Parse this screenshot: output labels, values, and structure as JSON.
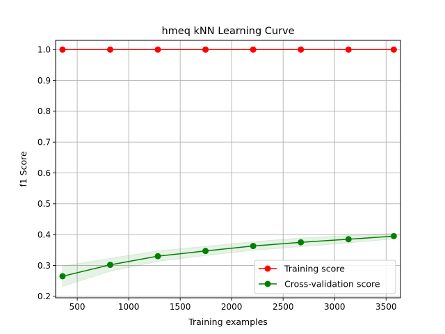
{
  "chart_data": {
    "type": "line",
    "title": "hmeq kNN Learning Curve",
    "xlabel": "Training examples",
    "ylabel": "f1 Score",
    "xlim": [
      290,
      3640
    ],
    "ylim": [
      0.195,
      1.03
    ],
    "xticks": [
      500,
      1000,
      1500,
      2000,
      2500,
      3000,
      3500
    ],
    "xtick_labels": [
      "500",
      "1000",
      "1500",
      "2000",
      "2500",
      "3000",
      "3500"
    ],
    "yticks": [
      0.2,
      0.3,
      0.4,
      0.5,
      0.6,
      0.7,
      0.8,
      0.9,
      1.0
    ],
    "ytick_labels": [
      "0.2",
      "0.3",
      "0.4",
      "0.5",
      "0.6",
      "0.7",
      "0.8",
      "0.9",
      "1.0"
    ],
    "grid": true,
    "legend_position": "bottom-right",
    "x": [
      357,
      820,
      1283,
      1746,
      2209,
      2672,
      3135,
      3575
    ],
    "series": [
      {
        "name": "Training score",
        "color": "#ff0000",
        "values": [
          1.0,
          1.0,
          1.0,
          1.0,
          1.0,
          1.0,
          1.0,
          1.0
        ],
        "band_lower": [
          1.0,
          1.0,
          1.0,
          1.0,
          1.0,
          1.0,
          1.0,
          1.0
        ],
        "band_upper": [
          1.0,
          1.0,
          1.0,
          1.0,
          1.0,
          1.0,
          1.0,
          1.0
        ]
      },
      {
        "name": "Cross-validation score",
        "color": "#008000",
        "values": [
          0.265,
          0.302,
          0.33,
          0.347,
          0.363,
          0.375,
          0.385,
          0.395
        ],
        "band_lower": [
          0.232,
          0.281,
          0.313,
          0.332,
          0.349,
          0.361,
          0.373,
          0.386
        ],
        "band_upper": [
          0.298,
          0.323,
          0.347,
          0.362,
          0.377,
          0.389,
          0.397,
          0.404
        ]
      }
    ]
  }
}
